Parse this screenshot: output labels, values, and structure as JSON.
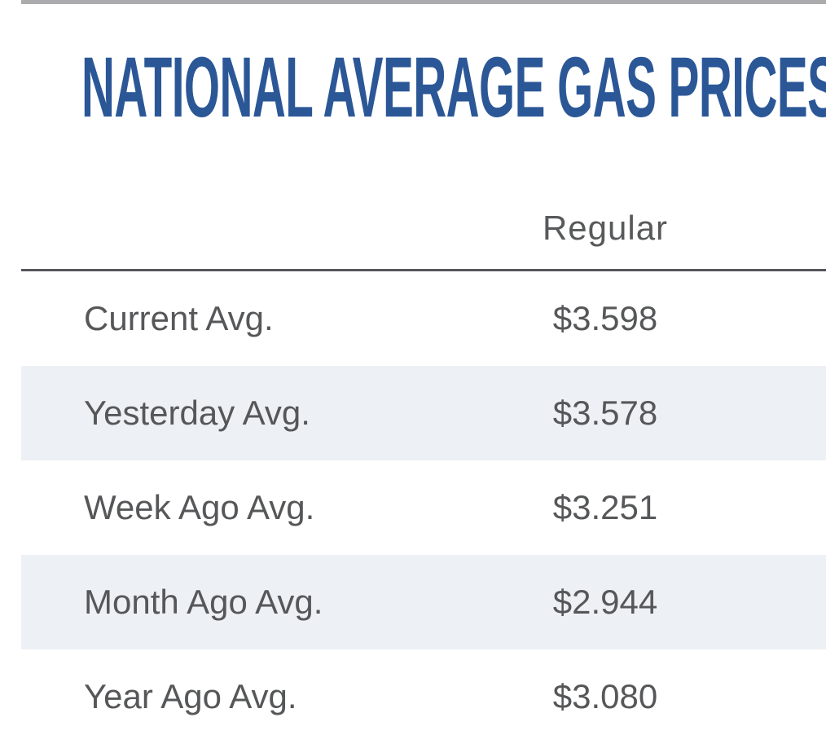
{
  "header": {
    "title": "NATIONAL AVERAGE GAS PRICES"
  },
  "table": {
    "column_header": "Regular",
    "rows": [
      {
        "label": "Current Avg.",
        "value": "$3.598"
      },
      {
        "label": "Yesterday Avg.",
        "value": "$3.578"
      },
      {
        "label": "Week Ago Avg.",
        "value": "$3.251"
      },
      {
        "label": "Month Ago Avg.",
        "value": "$2.944"
      },
      {
        "label": "Year Ago Avg.",
        "value": "$3.080"
      }
    ]
  },
  "colors": {
    "title_blue": "#2b5797",
    "row_stripe": "#edf1f5",
    "top_bar_gray": "#ababad",
    "divider_gray": "#54565a",
    "text_gray": "#565759"
  }
}
